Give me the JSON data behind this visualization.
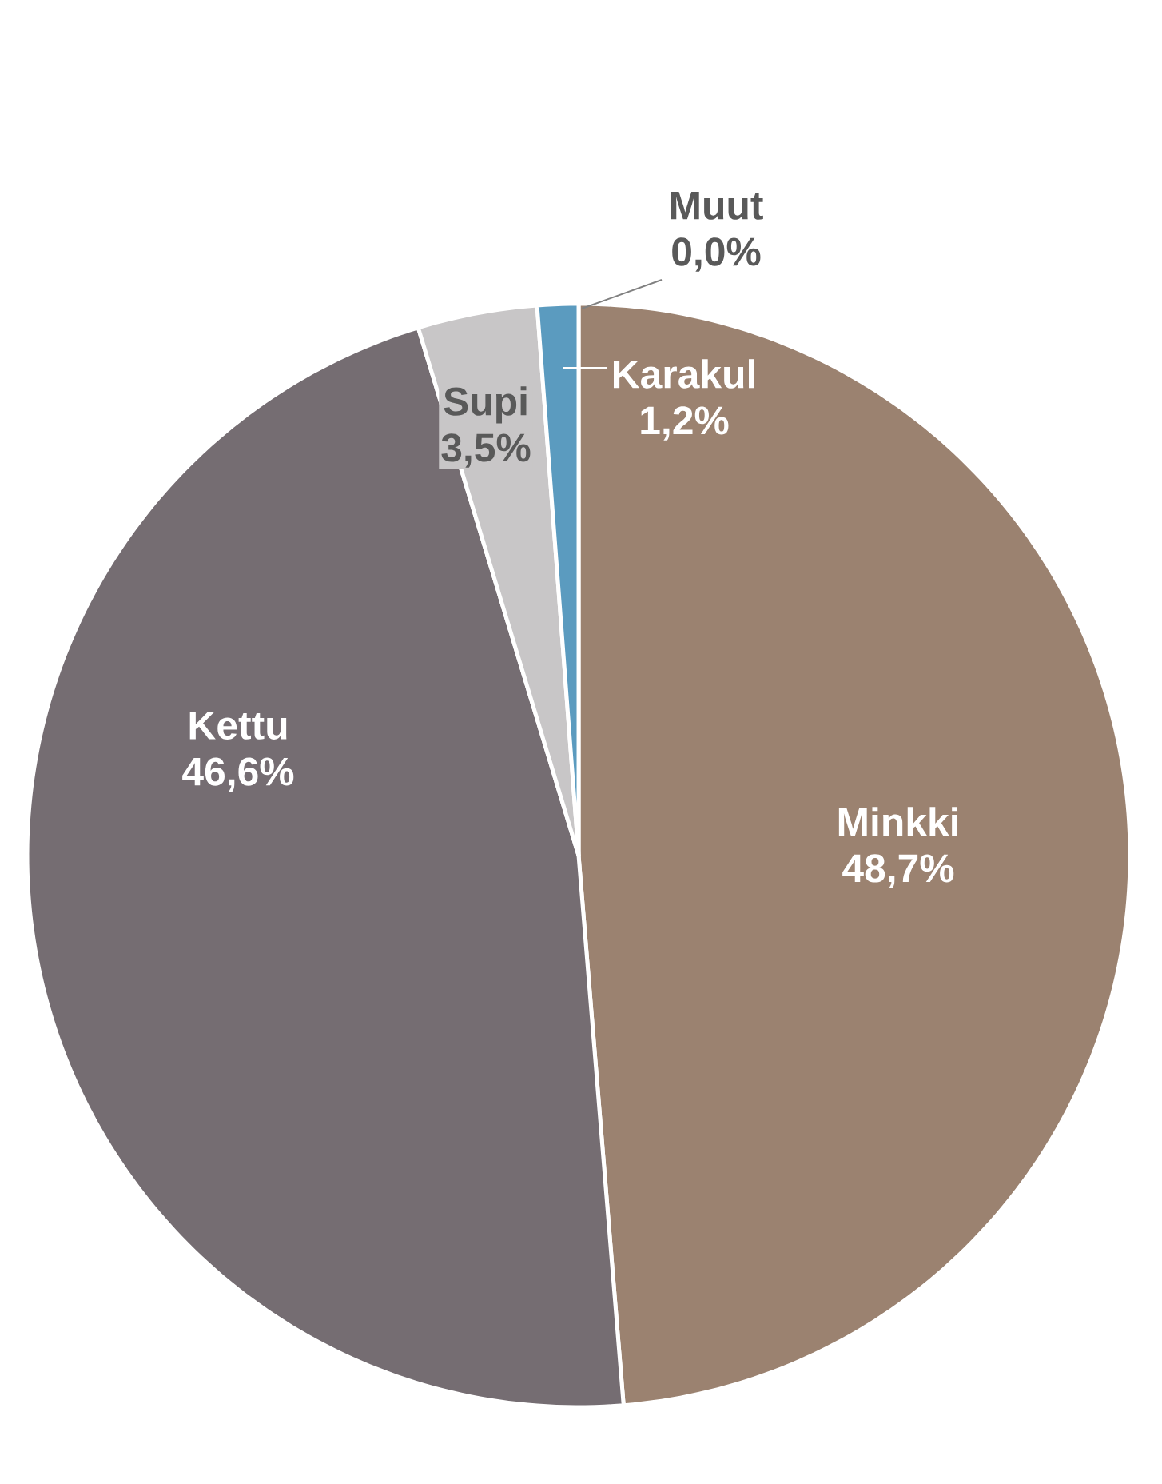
{
  "chart_data": {
    "type": "pie",
    "categories": [
      "Minkki",
      "Kettu",
      "Supi",
      "Karakul",
      "Muut"
    ],
    "values": [
      48.7,
      46.6,
      3.5,
      1.2,
      0.0
    ],
    "value_labels": [
      "48,7%",
      "46,6%",
      "3,5%",
      "1,2%",
      "0,0%"
    ],
    "colors": [
      "#9b8270",
      "#756d72",
      "#c8c6c7",
      "#5b9bbf",
      "#a5a5a5"
    ]
  }
}
